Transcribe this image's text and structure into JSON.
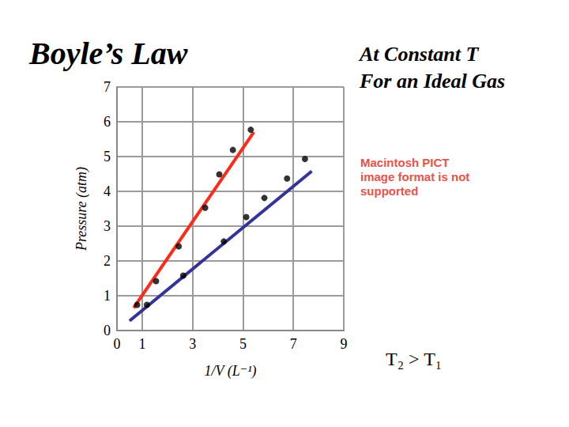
{
  "chart_data": {
    "type": "scatter",
    "title": "Boyle’s Law",
    "subtitle": [
      "At Constant T",
      "For an Ideal Gas"
    ],
    "x_label": "1/V (L⁻¹)",
    "y_label": "Pressure (atm)",
    "annotations": [
      {
        "text": "T₂ > T₁"
      },
      {
        "text": "Macintosh PICT image format is not supported",
        "color": "#e8534a"
      }
    ],
    "xlim": [
      0,
      9
    ],
    "xticks": [
      0,
      1,
      3,
      5,
      7,
      9
    ],
    "ylim": [
      0,
      7
    ],
    "yticks": [
      0,
      1,
      2,
      3,
      4,
      5,
      6,
      7
    ],
    "grid": true,
    "marker": "circle",
    "series": [
      {
        "color": "#ff2a1a",
        "x": [
          0.8,
          1.55,
          2.45,
          3.5,
          4.06,
          4.6,
          5.31
        ],
        "values": [
          0.74,
          1.42,
          2.42,
          3.53,
          4.49,
          5.19,
          5.77
        ],
        "fit": {
          "x": [
            0.66,
            5.43
          ],
          "values": [
            0.65,
            5.7
          ]
        }
      },
      {
        "color": "#33339a",
        "x": [
          1.19,
          2.63,
          4.24,
          5.13,
          5.85,
          6.75,
          7.46
        ],
        "values": [
          0.74,
          1.58,
          2.56,
          3.26,
          3.81,
          4.37,
          4.93
        ],
        "fit": {
          "x": [
            0.5,
            7.73
          ],
          "values": [
            0.28,
            4.58
          ]
        }
      }
    ]
  }
}
